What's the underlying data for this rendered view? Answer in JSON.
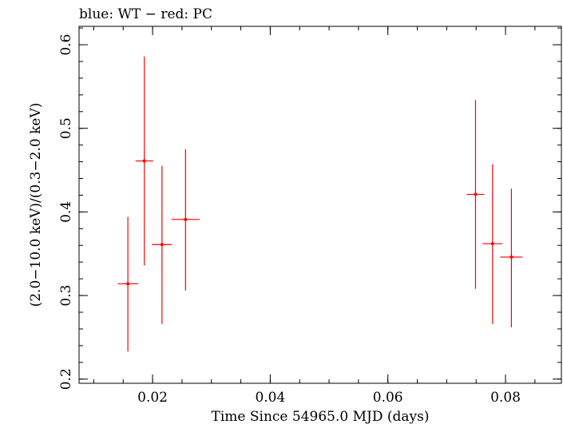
{
  "chart_data": {
    "type": "scatter",
    "title": "blue: WT − red: PC",
    "xlabel": "Time Since 54965.0 MJD (days)",
    "ylabel": "(2.0−10.0 keV)/(0.3−2.0 keV)",
    "xlim": [
      0.0075,
      0.0895
    ],
    "ylim": [
      0.195,
      0.622
    ],
    "x_ticks": [
      {
        "value": 0.02,
        "label": "0.02"
      },
      {
        "value": 0.04,
        "label": "0.04"
      },
      {
        "value": 0.06,
        "label": "0.06"
      },
      {
        "value": 0.08,
        "label": "0.08"
      }
    ],
    "y_ticks": [
      {
        "value": 0.2,
        "label": "0.2"
      },
      {
        "value": 0.3,
        "label": "0.3"
      },
      {
        "value": 0.4,
        "label": "0.4"
      },
      {
        "value": 0.5,
        "label": "0.5"
      },
      {
        "value": 0.6,
        "label": "0.6"
      }
    ],
    "x_minor_step": 0.005,
    "y_minor_step": 0.02,
    "grid": false,
    "series": [
      {
        "name": "PC",
        "color": "#ff0000",
        "points": [
          {
            "x": 0.0158,
            "y": 0.314,
            "xerr": 0.0017,
            "ylow": 0.233,
            "yhigh": 0.394
          },
          {
            "x": 0.0186,
            "y": 0.461,
            "xerr": 0.0015,
            "ylow": 0.336,
            "yhigh": 0.586
          },
          {
            "x": 0.0216,
            "y": 0.361,
            "xerr": 0.0017,
            "ylow": 0.266,
            "yhigh": 0.455
          },
          {
            "x": 0.0256,
            "y": 0.391,
            "xerr": 0.0024,
            "ylow": 0.306,
            "yhigh": 0.475
          },
          {
            "x": 0.0749,
            "y": 0.421,
            "xerr": 0.0015,
            "ylow": 0.308,
            "yhigh": 0.534
          },
          {
            "x": 0.0778,
            "y": 0.362,
            "xerr": 0.0017,
            "ylow": 0.266,
            "yhigh": 0.457
          },
          {
            "x": 0.081,
            "y": 0.346,
            "xerr": 0.0019,
            "ylow": 0.262,
            "yhigh": 0.428
          }
        ]
      }
    ]
  }
}
